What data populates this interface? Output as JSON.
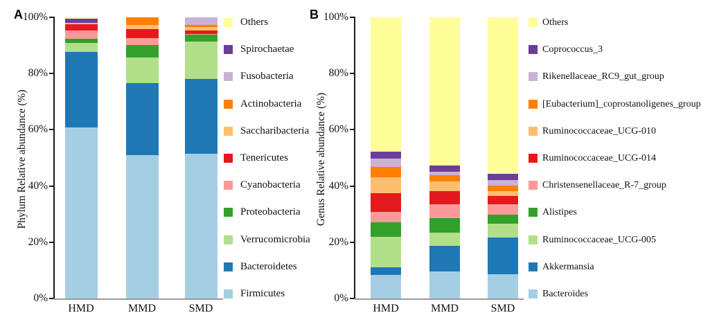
{
  "figure_background": "#ffffff",
  "chart_data": [
    {
      "type": "bar",
      "stacked": true,
      "panel_label": "A",
      "title": "",
      "ylabel": "Phylum Relative abundance (%)",
      "xlabel": "",
      "ylim": [
        0,
        100
      ],
      "grid": false,
      "legend_position": "right",
      "legend_order": "top-of-stack-first",
      "y_ticks": [
        "0%",
        "20%",
        "40%",
        "60%",
        "80%",
        "100%"
      ],
      "categories": [
        "HMD",
        "MMD",
        "SMD"
      ],
      "series": [
        {
          "name": "Firmicutes",
          "color": "#a6cee3",
          "values": [
            60.8,
            51.0,
            51.4
          ]
        },
        {
          "name": "Bacteroidetes",
          "color": "#1f78b4",
          "values": [
            26.9,
            25.5,
            26.8
          ]
        },
        {
          "name": "Verrucomicrobia",
          "color": "#b2df8a",
          "values": [
            3.1,
            9.1,
            13.1
          ]
        },
        {
          "name": "Proteobacteria",
          "color": "#33a02c",
          "values": [
            1.5,
            4.5,
            2.5
          ]
        },
        {
          "name": "Cyanobacteria",
          "color": "#fb9a99",
          "values": [
            3.1,
            2.6,
            0.4
          ]
        },
        {
          "name": "Tenericutes",
          "color": "#e31a1c",
          "values": [
            2.1,
            3.1,
            1.2
          ]
        },
        {
          "name": "Saccharibacteria",
          "color": "#fdbf6f",
          "values": [
            0.2,
            1.5,
            1.1
          ]
        },
        {
          "name": "Actinobacteria",
          "color": "#ff7f00",
          "values": [
            0.2,
            2.7,
            0.8
          ]
        },
        {
          "name": "Fusobacteria",
          "color": "#cab2d6",
          "values": [
            0.2,
            0.0,
            2.7
          ]
        },
        {
          "name": "Spirochaetae",
          "color": "#6a3d9a",
          "values": [
            1.4,
            0.0,
            0.0
          ]
        },
        {
          "name": "Others",
          "color": "#ffff99",
          "values": [
            0.5,
            0.0,
            0.0
          ]
        }
      ]
    },
    {
      "type": "bar",
      "stacked": true,
      "panel_label": "B",
      "title": "",
      "ylabel": "Genus Relative abundance (%)",
      "xlabel": "",
      "ylim": [
        0,
        100
      ],
      "grid": false,
      "legend_position": "right",
      "legend_order": "top-of-stack-first",
      "y_ticks": [
        "0%",
        "20%",
        "40%",
        "60%",
        "80%",
        "100%"
      ],
      "categories": [
        "HMD",
        "MMD",
        "SMD"
      ],
      "series": [
        {
          "name": "Bacteroides",
          "color": "#a6cee3",
          "values": [
            8.3,
            9.5,
            8.7
          ]
        },
        {
          "name": "Akkermansia",
          "color": "#1f78b4",
          "values": [
            2.9,
            9.3,
            13.0
          ]
        },
        {
          "name": "Ruminococcaceae_UCG-005",
          "color": "#b2df8a",
          "values": [
            10.6,
            4.7,
            5.0
          ]
        },
        {
          "name": "Alistipes",
          "color": "#33a02c",
          "values": [
            5.2,
            5.1,
            3.2
          ]
        },
        {
          "name": "Christensenellaceae_R-7_group",
          "color": "#fb9a99",
          "values": [
            3.8,
            4.9,
            3.6
          ]
        },
        {
          "name": "Ruminococcaceae_UCG-014",
          "color": "#e31a1c",
          "values": [
            6.7,
            4.7,
            2.9
          ]
        },
        {
          "name": "Ruminococcaceae_UCG-010",
          "color": "#fdbf6f",
          "values": [
            5.5,
            3.5,
            1.8
          ]
        },
        {
          "name": "[Eubacterium]_coprostanoligenes_group",
          "color": "#ff7f00",
          "values": [
            3.8,
            2.2,
            1.9
          ]
        },
        {
          "name": "Rikenellaceae_RC9_gut_group",
          "color": "#cab2d6",
          "values": [
            2.9,
            1.2,
            2.0
          ]
        },
        {
          "name": "Coprococcus_3",
          "color": "#6a3d9a",
          "values": [
            2.5,
            2.3,
            2.3
          ]
        },
        {
          "name": "Others",
          "color": "#ffff99",
          "values": [
            47.8,
            52.6,
            55.6
          ]
        }
      ]
    }
  ]
}
